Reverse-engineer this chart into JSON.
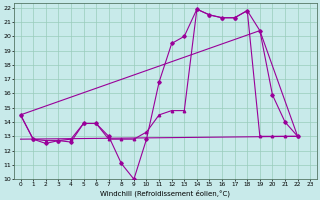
{
  "xlabel": "Windchill (Refroidissement éolien,°C)",
  "xlim": [
    -0.5,
    23.5
  ],
  "ylim": [
    10,
    22.3
  ],
  "yticks": [
    10,
    11,
    12,
    13,
    14,
    15,
    16,
    17,
    18,
    19,
    20,
    21,
    22
  ],
  "xticks": [
    0,
    1,
    2,
    3,
    4,
    5,
    6,
    7,
    8,
    9,
    10,
    11,
    12,
    13,
    14,
    15,
    16,
    17,
    18,
    19,
    20,
    21,
    22,
    23
  ],
  "bg_color": "#c8eaea",
  "line_color": "#990099",
  "grid_color": "#99ccbb",
  "line1_x": [
    0,
    1,
    2,
    3,
    4,
    5,
    6,
    7,
    8,
    9,
    10,
    11,
    12,
    13,
    14,
    15,
    16,
    17,
    18,
    19,
    20,
    21,
    22
  ],
  "line1_y": [
    14.5,
    12.8,
    12.5,
    12.7,
    12.6,
    13.9,
    13.9,
    13.0,
    11.1,
    10.0,
    12.8,
    16.8,
    19.5,
    20.0,
    21.9,
    21.5,
    21.3,
    21.3,
    21.8,
    20.4,
    15.9,
    14.0,
    13.0
  ],
  "line2_x": [
    0,
    1,
    2,
    3,
    4,
    5,
    6,
    7,
    8,
    9,
    10,
    11,
    12,
    13,
    14,
    15,
    16,
    17,
    18,
    19,
    20,
    21,
    22
  ],
  "line2_y": [
    14.5,
    12.8,
    12.7,
    12.7,
    12.8,
    13.9,
    13.9,
    12.8,
    12.8,
    12.8,
    13.3,
    14.5,
    14.8,
    14.8,
    21.9,
    21.5,
    21.3,
    21.3,
    21.8,
    13.0,
    13.0,
    13.0,
    13.0
  ],
  "line3_x": [
    0,
    22
  ],
  "line3_y": [
    12.8,
    13.0
  ],
  "line4_x": [
    0,
    19,
    22
  ],
  "line4_y": [
    14.5,
    20.4,
    13.0
  ]
}
